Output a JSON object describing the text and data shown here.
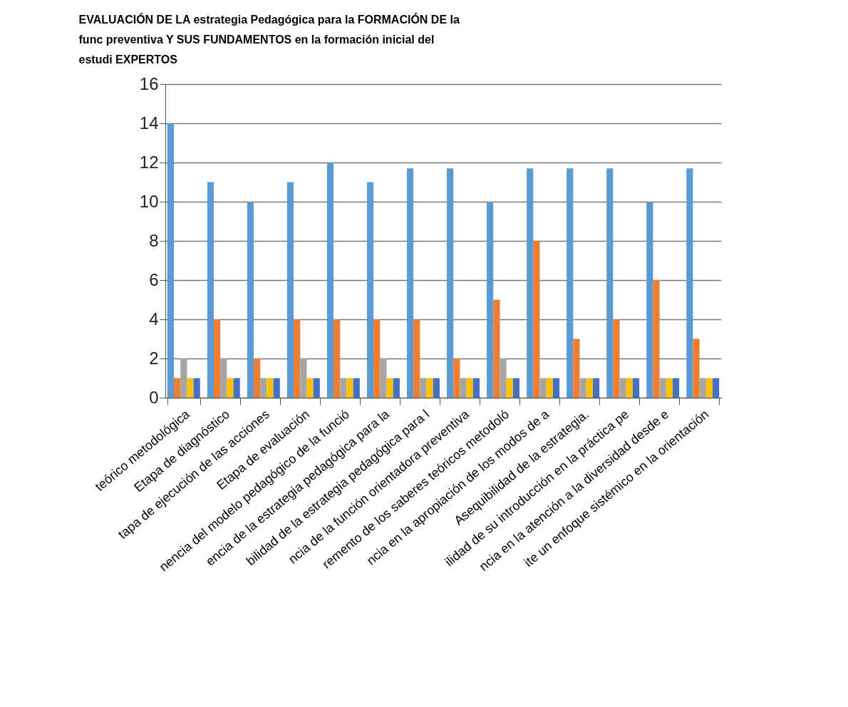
{
  "chart_data": {
    "type": "bar",
    "title": "EVALUACIÓN DE LA estrategia Pedagógica para la FORMACIÓN DE la func preventiva Y SUS FUNDAMENTOS en la formación inicial del estudi EXPERTOS",
    "categories": [
      "teórico metodológica",
      "Etapa de diagnóstico",
      "tapa de ejecución de las acciones",
      "Etapa de evaluación",
      "nencia del modelo pedagógico de la funció",
      "encia de la estrategia pedagógica para la",
      "bilidad de la estrategia pedagógica para l",
      "ncia de la función orientadora preventiva",
      "remento de los saberes teóricos metodoló",
      "ncia en la apropiación de los  modos de a",
      "Asequibilidad de la estrategia.",
      "ilidad de su introducción en la práctica pe",
      "ncia en la atención a la diversidad desde e",
      "ite un enfoque sistémico en la orientación"
    ],
    "series": [
      {
        "color": "#5b9bd5",
        "values": [
          14,
          11,
          10,
          11,
          12,
          11,
          11.7,
          11.7,
          10,
          11.7,
          11.7,
          11.7,
          10,
          11.7
        ]
      },
      {
        "color": "#ed7d31",
        "values": [
          1,
          4,
          2,
          4,
          4,
          4,
          4,
          2,
          5,
          8,
          3,
          4,
          6,
          3
        ]
      },
      {
        "color": "#a5a5a5",
        "values": [
          2,
          2,
          1,
          2,
          1,
          2,
          1,
          1,
          2,
          1,
          1,
          1,
          1,
          1
        ]
      },
      {
        "color": "#ffc000",
        "values": [
          1,
          1,
          1,
          1,
          1,
          1,
          1,
          1,
          1,
          1,
          1,
          1,
          1,
          1
        ]
      },
      {
        "color": "#4472c4",
        "values": [
          1,
          1,
          1,
          1,
          1,
          1,
          1,
          1,
          1,
          1,
          1,
          1,
          1,
          1
        ]
      }
    ],
    "ylim": [
      0,
      16
    ],
    "yticks": [
      0,
      2,
      4,
      6,
      8,
      10,
      12,
      14,
      16
    ],
    "grid": "y",
    "legend": false
  }
}
